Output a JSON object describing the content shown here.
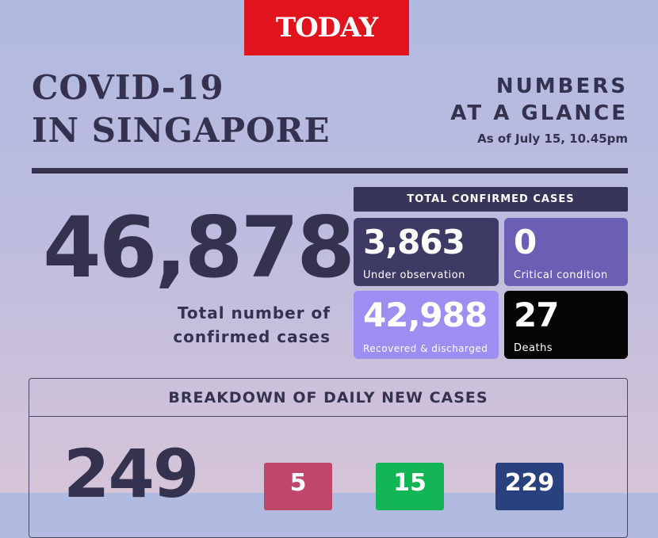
{
  "brand": {
    "logo_text": "TODAY",
    "color": "#e1141e"
  },
  "header": {
    "title_line1": "COVID-19",
    "title_line2": "IN SINGAPORE",
    "glance_line1": "NUMBERS",
    "glance_line2": "AT A GLANCE",
    "as_of": "As of July 15, 10.45pm"
  },
  "total": {
    "value": "46,878",
    "label_line1": "Total number of",
    "label_line2": "confirmed cases"
  },
  "confirmed": {
    "header": "TOTAL CONFIRMED CASES",
    "cards": [
      {
        "value": "3,863",
        "label": "Under observation",
        "color": "#3d3a66"
      },
      {
        "value": "0",
        "label": "Critical condition",
        "color": "#6a5fb4"
      },
      {
        "value": "42,988",
        "label": "Recovered & discharged",
        "color": "#9d8ef1"
      },
      {
        "value": "27",
        "label": "Deaths",
        "color": "#050505"
      }
    ]
  },
  "breakdown": {
    "header": "BREAKDOWN OF DAILY NEW CASES",
    "total": "249",
    "items": [
      {
        "value": "5",
        "color": "#c1466c"
      },
      {
        "value": "15",
        "color": "#12b656"
      },
      {
        "value": "229",
        "color": "#29427f"
      }
    ]
  }
}
